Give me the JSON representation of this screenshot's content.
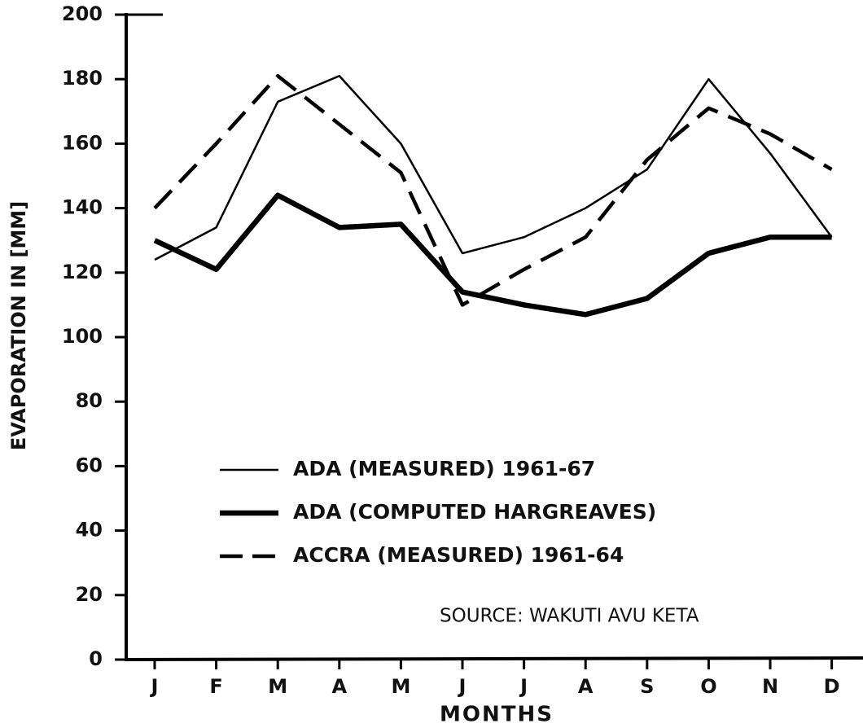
{
  "chart_data": {
    "type": "line",
    "x_label": "MONTHS",
    "y_label": "EVAPORATION IN [MM]",
    "categories": [
      "J",
      "F",
      "M",
      "A",
      "M",
      "J",
      "J",
      "A",
      "S",
      "O",
      "N",
      "D"
    ],
    "series": [
      {
        "name": "ADA  (MEASURED) 1961-67",
        "color": "#000000",
        "style": "thin",
        "values": [
          124,
          134,
          173,
          181,
          160,
          126,
          131,
          140,
          152,
          180,
          157,
          131
        ]
      },
      {
        "name": "ADA  (COMPUTED HARGREAVES)",
        "color": "#000000",
        "style": "thick",
        "values": [
          130,
          121,
          144,
          134,
          135,
          114,
          110,
          107,
          112,
          126,
          131,
          131
        ]
      },
      {
        "name": "ACCRA (MEASURED) 1961-64",
        "color": "#000000",
        "style": "dashed",
        "values": [
          140,
          160,
          181,
          166,
          151,
          110,
          121,
          131,
          155,
          171,
          163,
          152
        ]
      }
    ],
    "annotation": "SOURCE:  WAKUTI  AVU KETA",
    "ylim": [
      0,
      200
    ],
    "yticks": [
      0,
      20,
      40,
      60,
      80,
      100,
      120,
      140,
      160,
      180,
      200
    ],
    "grid": false
  }
}
